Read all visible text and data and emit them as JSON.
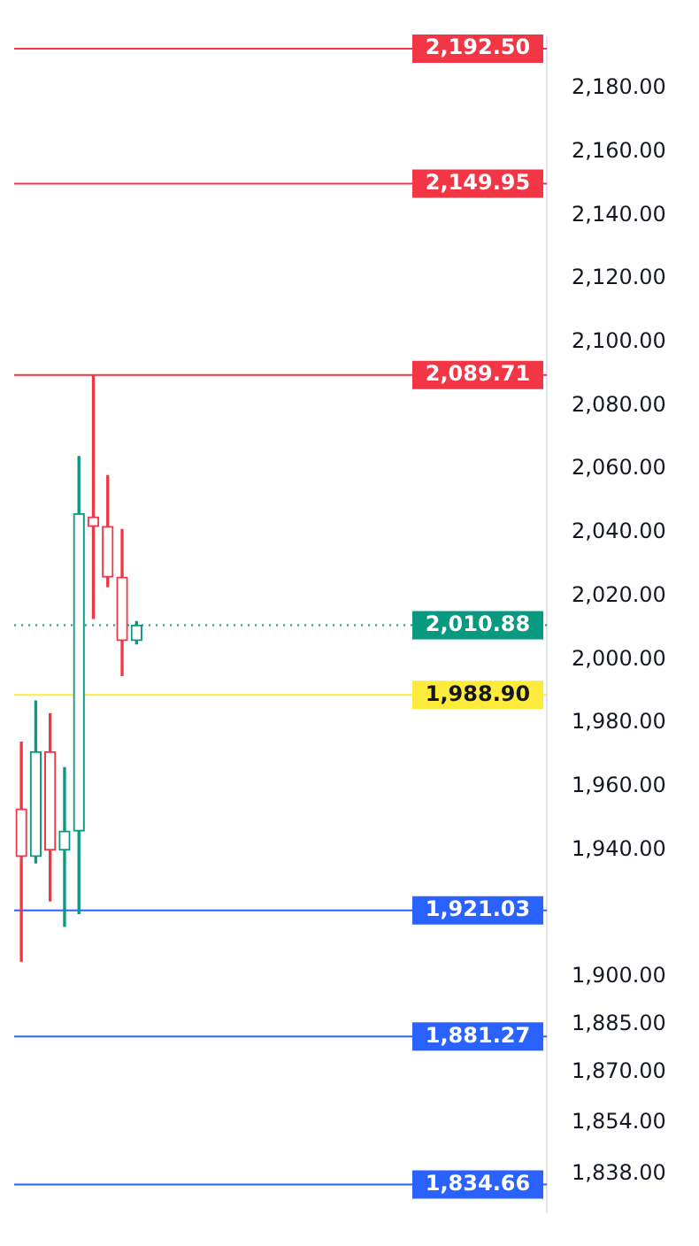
{
  "chart_data": {
    "type": "candlestick",
    "categories": [
      null,
      null,
      null,
      null,
      null,
      null,
      null,
      null,
      null,
      null,
      null,
      null,
      null,
      null,
      null,
      null,
      null,
      null,
      null,
      null,
      null,
      null,
      null,
      null,
      null,
      null,
      null,
      null,
      null,
      null,
      null,
      null,
      null,
      null,
      null,
      null,
      null
    ],
    "ohlc": [
      [
        1953,
        1974,
        1905,
        1938
      ],
      [
        1938,
        1987,
        1936,
        1971
      ],
      [
        1971,
        1983,
        1924,
        1940
      ],
      [
        1940,
        1966,
        1916,
        1946
      ],
      [
        1946,
        2064,
        1920,
        2046
      ],
      [
        2045,
        2089.71,
        2013,
        2042
      ],
      [
        2042,
        2058,
        2023,
        2026
      ],
      [
        2026,
        2041,
        1995,
        2006
      ],
      [
        2006,
        2012,
        2005,
        2010.88
      ],
      null,
      null,
      null,
      null,
      null,
      null,
      null,
      null,
      null,
      null,
      null,
      null,
      null,
      null,
      null,
      null,
      null,
      null,
      null,
      null,
      null,
      null,
      null,
      null,
      null,
      null,
      null,
      null
    ],
    "colors": [
      "#f23645",
      "#089981",
      "#f23645",
      "#089981",
      "#089981",
      "#f23645",
      "#f23645",
      "#f23645",
      "#089981",
      null,
      null,
      null,
      null,
      null,
      null,
      null,
      null,
      null,
      null,
      null,
      null,
      null,
      null,
      null,
      null,
      null,
      null,
      null,
      null,
      null,
      null,
      null,
      null,
      null,
      null,
      null,
      null
    ],
    "ylim": [
      1826,
      2196
    ],
    "yticks": [
      {
        "value": 2180,
        "label": "2,180.00"
      },
      {
        "value": 2160,
        "label": "2,160.00"
      },
      {
        "value": 2140,
        "label": "2,140.00"
      },
      {
        "value": 2120,
        "label": "2,120.00"
      },
      {
        "value": 2100,
        "label": "2,100.00"
      },
      {
        "value": 2080,
        "label": "2,080.00"
      },
      {
        "value": 2060,
        "label": "2,060.00"
      },
      {
        "value": 2040,
        "label": "2,040.00"
      },
      {
        "value": 2020,
        "label": "2,020.00"
      },
      {
        "value": 2000,
        "label": "2,000.00"
      },
      {
        "value": 1980,
        "label": "1,980.00"
      },
      {
        "value": 1960,
        "label": "1,960.00"
      },
      {
        "value": 1940,
        "label": "1,940.00"
      },
      {
        "value": 1900,
        "label": "1,900.00"
      },
      {
        "value": 1885,
        "label": "1,885.00"
      },
      {
        "value": 1870,
        "label": "1,870.00"
      },
      {
        "value": 1854,
        "label": "1,854.00"
      },
      {
        "value": 1838,
        "label": "1,838.00"
      }
    ],
    "ref_lines": [
      {
        "axis": "y",
        "value": 2192.5,
        "label": "2,192.50",
        "color": "#f23645",
        "line_style": "solid"
      },
      {
        "axis": "y",
        "value": 2149.95,
        "label": "2,149.95",
        "color": "#f23645",
        "line_style": "solid"
      },
      {
        "axis": "y",
        "value": 2089.71,
        "label": "2,089.71",
        "color": "#f23645",
        "line_style": "solid"
      },
      {
        "axis": "y",
        "value": 2010.88,
        "label": "2,010.88",
        "color": "#089981",
        "line_style": "dotted"
      },
      {
        "axis": "y",
        "value": 1988.9,
        "label": "1,988.90",
        "color": "#ffeb3b",
        "line_style": "solid"
      },
      {
        "axis": "y",
        "value": 1921.03,
        "label": "1,921.03",
        "color": "#2962ff",
        "line_style": "solid"
      },
      {
        "axis": "y",
        "value": 1881.27,
        "label": "1,881.27",
        "color": "#2962ff",
        "line_style": "solid"
      },
      {
        "axis": "y",
        "value": 1834.66,
        "label": "1,834.66",
        "color": "#2962ff",
        "line_style": "solid"
      }
    ]
  }
}
